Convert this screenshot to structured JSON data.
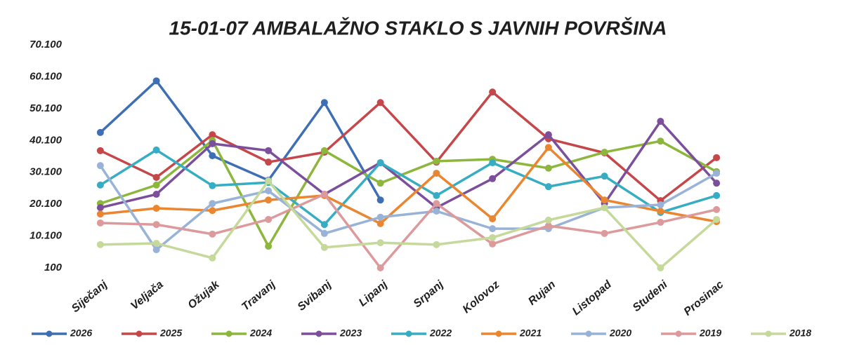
{
  "chart_data": {
    "type": "line",
    "title": "15-01-07 AMBALAŽNO STAKLO S JAVNIH POVRŠINA",
    "categories": [
      "Siječanj",
      "Veljača",
      "Ožujak",
      "Travanj",
      "Svibanj",
      "Lipanj",
      "Srpanj",
      "Kolovoz",
      "Rujan",
      "Listopad",
      "Studeni",
      "Prosinac"
    ],
    "ylim": [
      100,
      70100
    ],
    "yticks": [
      100,
      {
        "value": 10100,
        "label": "10.100"
      },
      {
        "value": 20100,
        "label": "20.100"
      },
      {
        "value": 30100,
        "label": "30.100"
      },
      {
        "value": 40100,
        "label": "40.100"
      },
      {
        "value": 50100,
        "label": "50.100"
      },
      {
        "value": 60100,
        "label": "60.100"
      },
      {
        "value": 70100,
        "label": "70.100"
      }
    ],
    "grid": false,
    "legend": "bottom",
    "series": [
      {
        "name": "2026",
        "color": "#3e6fb5",
        "values": [
          42600,
          58800,
          35300,
          27600,
          52000,
          21400,
          null,
          null,
          null,
          null,
          null,
          null
        ]
      },
      {
        "name": "2025",
        "color": "#c5474a",
        "values": [
          36900,
          28500,
          41900,
          33300,
          36400,
          52000,
          33300,
          55300,
          40600,
          36200,
          21200,
          34700
        ]
      },
      {
        "name": "2024",
        "color": "#8db63c",
        "values": [
          20300,
          26100,
          40100,
          6900,
          36900,
          26700,
          33600,
          34200,
          31400,
          36400,
          39900,
          30300
        ]
      },
      {
        "name": "2023",
        "color": "#7b4f9c",
        "values": [
          19000,
          23200,
          39100,
          36900,
          23200,
          33100,
          19000,
          28100,
          41900,
          20300,
          46100,
          26700
        ]
      },
      {
        "name": "2022",
        "color": "#37adc3",
        "values": [
          26100,
          37100,
          25900,
          26900,
          13700,
          33100,
          22800,
          33100,
          25600,
          28900,
          17500,
          22800
        ]
      },
      {
        "name": "2021",
        "color": "#eb8630",
        "values": [
          17000,
          18800,
          18100,
          21400,
          22800,
          14000,
          29800,
          15500,
          37900,
          21400,
          17900,
          14600
        ]
      },
      {
        "name": "2020",
        "color": "#99b3d8",
        "values": [
          32200,
          5800,
          20300,
          24300,
          10900,
          16000,
          17900,
          12400,
          12400,
          19000,
          19900,
          29800
        ]
      },
      {
        "name": "2019",
        "color": "#dd9a9c",
        "values": [
          14200,
          13700,
          10700,
          15300,
          23200,
          100,
          20300,
          7600,
          13300,
          10900,
          14400,
          18400
        ]
      },
      {
        "name": "2018",
        "color": "#c5d99b",
        "values": [
          7400,
          7800,
          3200,
          27400,
          6500,
          8000,
          7400,
          9600,
          15100,
          19000,
          100,
          15300
        ]
      }
    ]
  }
}
